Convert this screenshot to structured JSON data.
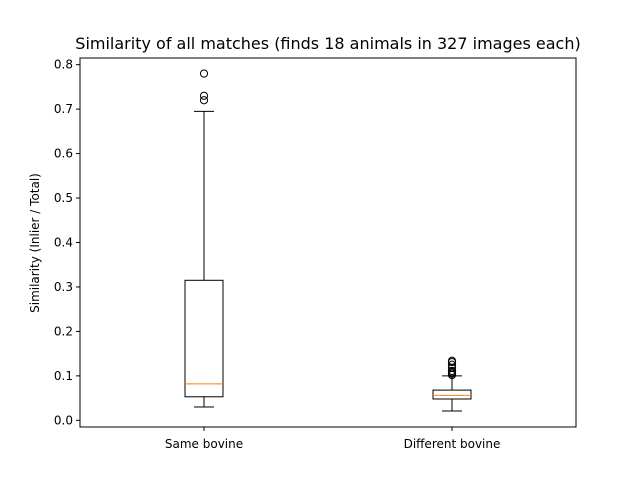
{
  "chart_data": {
    "type": "box",
    "title": "Similarity of all matches (finds 18 animals in 327 images each)",
    "xlabel": "",
    "ylabel": "Similarity  (Inlier / Total)",
    "ylim": [
      -0.015,
      0.815
    ],
    "yticks": [
      0.0,
      0.1,
      0.2,
      0.3,
      0.4,
      0.5,
      0.6,
      0.7,
      0.8
    ],
    "ytick_labels": [
      "0.0",
      "0.1",
      "0.2",
      "0.3",
      "0.4",
      "0.5",
      "0.6",
      "0.7",
      "0.8"
    ],
    "categories": [
      "Same bovine",
      "Different bovine"
    ],
    "boxes": [
      {
        "label": "Same bovine",
        "whisker_low": 0.03,
        "q1": 0.053,
        "median": 0.082,
        "q3": 0.315,
        "whisker_high": 0.695,
        "outliers": [
          0.72,
          0.73,
          0.78
        ]
      },
      {
        "label": "Different bovine",
        "whisker_low": 0.021,
        "q1": 0.048,
        "median": 0.056,
        "q3": 0.068,
        "whisker_high": 0.1,
        "outliers": [
          0.102,
          0.105,
          0.108,
          0.111,
          0.118,
          0.125,
          0.131,
          0.134
        ]
      }
    ],
    "grid": false,
    "legend": "none",
    "colors": {
      "box": "#000000",
      "median": "#ff7f0e",
      "outlier": "#000000",
      "background": "#ffffff"
    }
  }
}
